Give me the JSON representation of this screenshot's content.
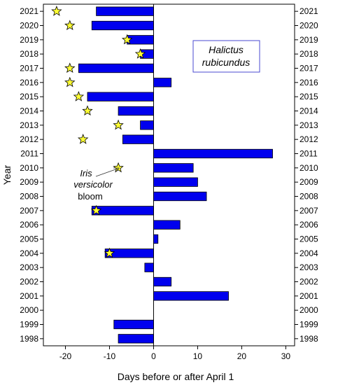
{
  "chart_data": {
    "type": "bar",
    "orientation": "horizontal",
    "title": "",
    "xlabel": "Days before or after April 1",
    "ylabel": "Year",
    "xlim": [
      -25,
      32
    ],
    "x_ticks": [
      -20,
      -10,
      0,
      10,
      20,
      30
    ],
    "grid": false,
    "legend": {
      "text": "Halictus rubicundus",
      "line1": "Halictus",
      "line2": "rubicundus",
      "placement": "top-right"
    },
    "categories": [
      "2021",
      "2020",
      "2019",
      "2018",
      "2017",
      "2016",
      "2015",
      "2014",
      "2013",
      "2012",
      "2011",
      "2010",
      "2009",
      "2008",
      "2007",
      "2006",
      "2005",
      "2004",
      "2003",
      "2002",
      "2001",
      "2000",
      "1999",
      "1998"
    ],
    "series": [
      {
        "values": [
          -13,
          -14,
          -6,
          -3,
          -17,
          4,
          -15,
          -8,
          -3,
          -7,
          27,
          9,
          10,
          12,
          -14,
          6,
          1,
          -11,
          -2,
          4,
          17,
          null,
          -9,
          -8
        ],
        "color": "#0000ee"
      },
      {
        "marker": "star",
        "color": "#ffff33",
        "values": [
          -22,
          -19,
          -6,
          -3,
          -19,
          -19,
          -17,
          -15,
          -8,
          -16,
          null,
          -8,
          null,
          null,
          -13,
          null,
          null,
          -10,
          null,
          null,
          null,
          null,
          null,
          null
        ]
      }
    ],
    "annotation": {
      "line1": "Iris",
      "line2": "versicolor",
      "line3": "bloom",
      "points_to_year": "2010",
      "points_to_value": -8
    }
  }
}
